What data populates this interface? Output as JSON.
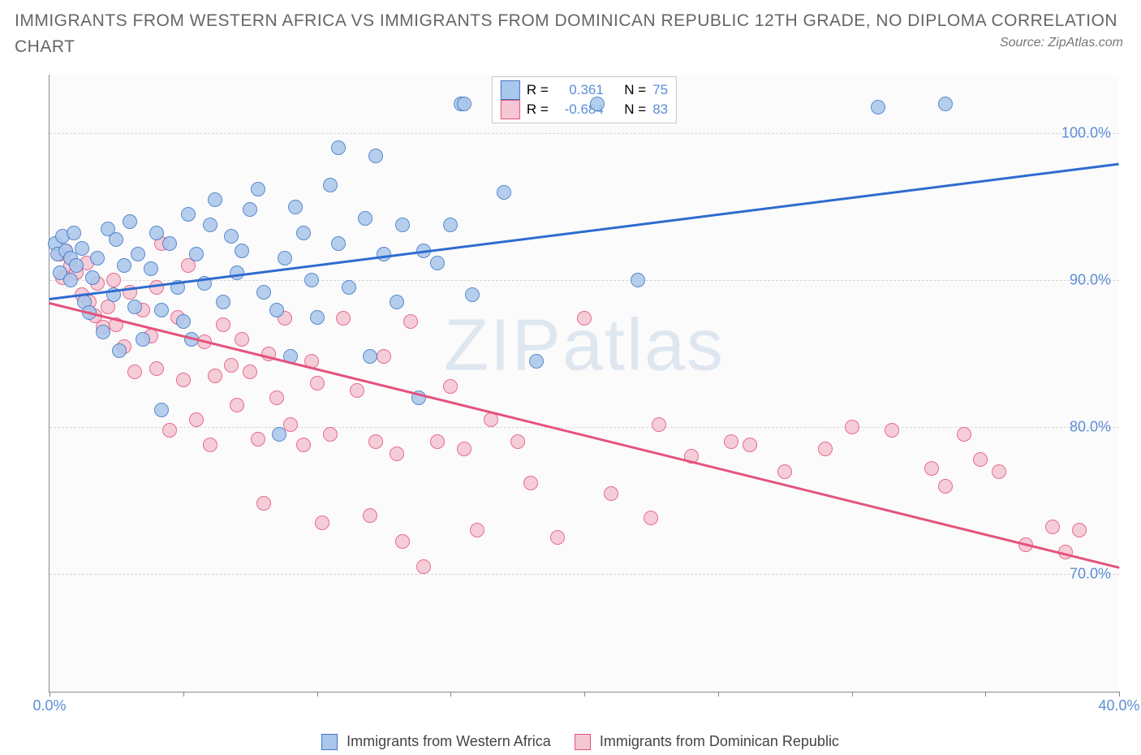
{
  "title": "IMMIGRANTS FROM WESTERN AFRICA VS IMMIGRANTS FROM DOMINICAN REPUBLIC 12TH GRADE, NO DIPLOMA CORRELATION CHART",
  "source": "Source: ZipAtlas.com",
  "watermark": "ZIPatlas",
  "chart": {
    "type": "scatter",
    "y_axis_label": "12th Grade, No Diploma",
    "xlim": [
      0,
      40
    ],
    "ylim": [
      62,
      104
    ],
    "x_ticks": [
      0,
      5,
      10,
      15,
      20,
      25,
      30,
      35,
      40
    ],
    "x_tick_labels": {
      "0": "0.0%",
      "40": "40.0%"
    },
    "y_ticks": [
      70,
      80,
      90,
      100
    ],
    "y_tick_labels": {
      "70": "70.0%",
      "80": "80.0%",
      "90": "90.0%",
      "100": "100.0%"
    },
    "background_color": "#fbfbfb",
    "grid_color": "#d8d8d8",
    "axis_color": "#888888",
    "tick_label_color": "#5b8dd6",
    "marker_radius": 8,
    "marker_stroke_width": 1.5,
    "marker_fill_opacity": 0.3,
    "trend_line_width": 2.5
  },
  "series": {
    "blue": {
      "label": "Immigrants from Western Africa",
      "fill": "#a9c7ec",
      "stroke": "#3f76c4",
      "line_color": "#2e6bd0",
      "R": "0.361",
      "N": "75",
      "trend": {
        "x1": 0,
        "y1": 88.8,
        "x2": 40,
        "y2": 98.0
      },
      "points": [
        [
          0.2,
          92.5
        ],
        [
          0.3,
          91.8
        ],
        [
          0.4,
          90.5
        ],
        [
          0.5,
          93.0
        ],
        [
          0.6,
          92.0
        ],
        [
          0.8,
          91.5
        ],
        [
          0.8,
          90.0
        ],
        [
          0.9,
          93.2
        ],
        [
          1.0,
          91.0
        ],
        [
          1.2,
          92.2
        ],
        [
          1.3,
          88.5
        ],
        [
          1.5,
          87.8
        ],
        [
          1.6,
          90.2
        ],
        [
          1.8,
          91.5
        ],
        [
          2.0,
          86.5
        ],
        [
          2.2,
          93.5
        ],
        [
          2.4,
          89.0
        ],
        [
          2.5,
          92.8
        ],
        [
          2.6,
          85.2
        ],
        [
          2.8,
          91.0
        ],
        [
          3.0,
          94.0
        ],
        [
          3.2,
          88.2
        ],
        [
          3.3,
          91.8
        ],
        [
          3.5,
          86.0
        ],
        [
          3.8,
          90.8
        ],
        [
          4.0,
          93.2
        ],
        [
          4.2,
          88.0
        ],
        [
          4.2,
          81.2
        ],
        [
          4.5,
          92.5
        ],
        [
          4.8,
          89.5
        ],
        [
          5.0,
          87.2
        ],
        [
          5.2,
          94.5
        ],
        [
          5.3,
          86.0
        ],
        [
          5.5,
          91.8
        ],
        [
          5.8,
          89.8
        ],
        [
          6.0,
          93.8
        ],
        [
          6.2,
          95.5
        ],
        [
          6.5,
          88.5
        ],
        [
          6.8,
          93.0
        ],
        [
          7.0,
          90.5
        ],
        [
          7.2,
          92.0
        ],
        [
          7.5,
          94.8
        ],
        [
          7.8,
          96.2
        ],
        [
          8.0,
          89.2
        ],
        [
          8.5,
          88.0
        ],
        [
          8.6,
          79.5
        ],
        [
          8.8,
          91.5
        ],
        [
          9.0,
          84.8
        ],
        [
          9.2,
          95.0
        ],
        [
          9.5,
          93.2
        ],
        [
          9.8,
          90.0
        ],
        [
          10.0,
          87.5
        ],
        [
          10.5,
          96.5
        ],
        [
          10.8,
          92.5
        ],
        [
          10.8,
          99.0
        ],
        [
          11.2,
          89.5
        ],
        [
          11.8,
          94.2
        ],
        [
          12.0,
          84.8
        ],
        [
          12.2,
          98.5
        ],
        [
          12.5,
          91.8
        ],
        [
          13.0,
          88.5
        ],
        [
          13.2,
          93.8
        ],
        [
          13.8,
          82.0
        ],
        [
          14.0,
          92.0
        ],
        [
          14.5,
          91.2
        ],
        [
          15.0,
          93.8
        ],
        [
          15.4,
          102.0
        ],
        [
          15.5,
          102.0
        ],
        [
          15.8,
          89.0
        ],
        [
          17.0,
          96.0
        ],
        [
          18.2,
          84.5
        ],
        [
          20.5,
          102.0
        ],
        [
          22.0,
          90.0
        ],
        [
          31.0,
          101.8
        ],
        [
          33.5,
          102.0
        ]
      ]
    },
    "pink": {
      "label": "Immigrants from Dominican Republic",
      "fill": "#f5c6d3",
      "stroke": "#e4537c",
      "line_color": "#e4537c",
      "R": "-0.684",
      "N": "83",
      "trend": {
        "x1": 0,
        "y1": 88.5,
        "x2": 40,
        "y2": 70.5
      },
      "points": [
        [
          0.4,
          91.8
        ],
        [
          0.5,
          90.2
        ],
        [
          0.6,
          92.0
        ],
        [
          0.8,
          91.0
        ],
        [
          1.0,
          90.5
        ],
        [
          1.2,
          89.0
        ],
        [
          1.4,
          91.2
        ],
        [
          1.5,
          88.5
        ],
        [
          1.7,
          87.6
        ],
        [
          1.8,
          89.8
        ],
        [
          2.0,
          86.8
        ],
        [
          2.2,
          88.2
        ],
        [
          2.4,
          90.0
        ],
        [
          2.5,
          87.0
        ],
        [
          2.8,
          85.5
        ],
        [
          3.0,
          89.2
        ],
        [
          3.2,
          83.8
        ],
        [
          3.5,
          88.0
        ],
        [
          3.8,
          86.2
        ],
        [
          4.0,
          84.0
        ],
        [
          4.0,
          89.5
        ],
        [
          4.2,
          92.5
        ],
        [
          4.5,
          79.8
        ],
        [
          4.8,
          87.5
        ],
        [
          5.0,
          83.2
        ],
        [
          5.2,
          91.0
        ],
        [
          5.5,
          80.5
        ],
        [
          5.8,
          85.8
        ],
        [
          6.0,
          78.8
        ],
        [
          6.2,
          83.5
        ],
        [
          6.5,
          87.0
        ],
        [
          6.8,
          84.2
        ],
        [
          7.0,
          81.5
        ],
        [
          7.2,
          86.0
        ],
        [
          7.5,
          83.8
        ],
        [
          7.8,
          79.2
        ],
        [
          8.0,
          74.8
        ],
        [
          8.2,
          85.0
        ],
        [
          8.5,
          82.0
        ],
        [
          8.8,
          87.4
        ],
        [
          9.0,
          80.2
        ],
        [
          9.5,
          78.8
        ],
        [
          9.8,
          84.5
        ],
        [
          10.0,
          83.0
        ],
        [
          10.2,
          73.5
        ],
        [
          10.5,
          79.5
        ],
        [
          11.0,
          87.4
        ],
        [
          11.5,
          82.5
        ],
        [
          12.0,
          74.0
        ],
        [
          12.2,
          79.0
        ],
        [
          12.5,
          84.8
        ],
        [
          13.0,
          78.2
        ],
        [
          13.2,
          72.2
        ],
        [
          13.5,
          87.2
        ],
        [
          14.0,
          70.5
        ],
        [
          14.5,
          79.0
        ],
        [
          15.0,
          82.8
        ],
        [
          15.5,
          78.5
        ],
        [
          16.0,
          73.0
        ],
        [
          16.5,
          80.5
        ],
        [
          17.5,
          79.0
        ],
        [
          18.0,
          76.2
        ],
        [
          19.0,
          72.5
        ],
        [
          20.0,
          87.4
        ],
        [
          21.0,
          75.5
        ],
        [
          22.5,
          73.8
        ],
        [
          22.8,
          80.2
        ],
        [
          24.0,
          78.0
        ],
        [
          25.5,
          79.0
        ],
        [
          26.2,
          78.8
        ],
        [
          27.5,
          77.0
        ],
        [
          29.0,
          78.5
        ],
        [
          30.0,
          80.0
        ],
        [
          31.5,
          79.8
        ],
        [
          33.0,
          77.2
        ],
        [
          33.5,
          76.0
        ],
        [
          34.2,
          79.5
        ],
        [
          34.8,
          77.8
        ],
        [
          35.5,
          77.0
        ],
        [
          36.5,
          72.0
        ],
        [
          37.5,
          73.2
        ],
        [
          38.0,
          71.5
        ],
        [
          38.5,
          73.0
        ]
      ]
    }
  },
  "legend_top": {
    "r_label": "R =",
    "n_label": "N ="
  },
  "legend_bottom": {
    "items": [
      "blue",
      "pink"
    ]
  }
}
